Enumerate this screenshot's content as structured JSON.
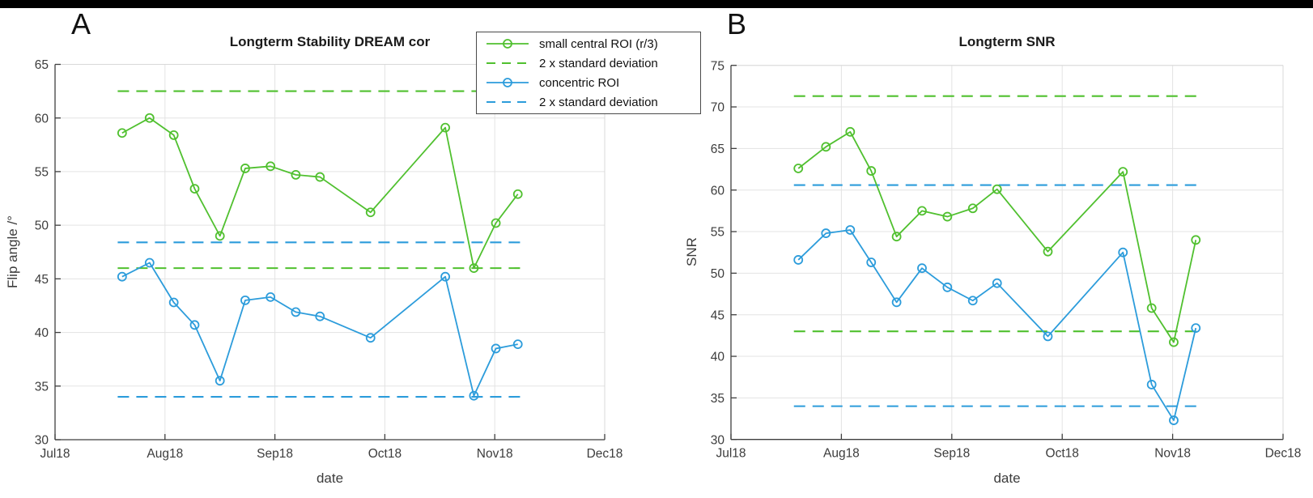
{
  "panel_labels": {
    "a": "A",
    "b": "B"
  },
  "colors": {
    "green": "#50C02F",
    "blue": "#2C9CDB",
    "grid": "#E3E3E3",
    "box_light": "#D9D9D9",
    "axis": "#3F3F3F",
    "tick_text": "#3C3C3C"
  },
  "legend": {
    "items": [
      {
        "label": "small central ROI (r/3)",
        "style": "solid-marker",
        "color_key": "green"
      },
      {
        "label": "2 x standard deviation",
        "style": "dashed",
        "color_key": "green"
      },
      {
        "label": "concentric ROI",
        "style": "solid-marker",
        "color_key": "blue"
      },
      {
        "label": "2 x standard deviation",
        "style": "dashed",
        "color_key": "blue"
      }
    ]
  },
  "chart_data": [
    {
      "type": "line",
      "title": "Longterm Stability DREAM cor",
      "xlabel": "date",
      "ylabel": "Flip angle /°",
      "x_unit": "months after Jul18 tick (0 = Jul18, 1 = Aug18, ...)",
      "xlim": [
        0,
        5
      ],
      "ylim": [
        30,
        65
      ],
      "yticks": [
        30,
        35,
        40,
        45,
        50,
        55,
        60,
        65
      ],
      "xtick_labels": [
        "Jul18",
        "Aug18",
        "Sep18",
        "Oct18",
        "Nov18",
        "Dec18"
      ],
      "grid": true,
      "hline_span": [
        0.57,
        4.24
      ],
      "x": [
        0.61,
        0.86,
        1.08,
        1.27,
        1.5,
        1.73,
        1.96,
        2.19,
        2.41,
        2.87,
        3.55,
        3.81,
        4.01,
        4.21
      ],
      "series": [
        {
          "name": "small central ROI (r/3)",
          "color_key": "green",
          "style": "solid",
          "marker": "circle",
          "values": [
            58.6,
            60.0,
            58.4,
            53.4,
            49.0,
            55.3,
            55.5,
            54.7,
            54.5,
            51.2,
            59.1,
            46.0,
            50.2,
            52.9
          ]
        },
        {
          "name": "2 x standard deviation",
          "color_key": "green",
          "style": "dashed",
          "hlines": [
            62.5,
            46.0
          ]
        },
        {
          "name": "concentric ROI",
          "color_key": "blue",
          "style": "solid",
          "marker": "circle",
          "values": [
            45.2,
            46.5,
            42.8,
            40.7,
            35.5,
            43.0,
            43.3,
            41.9,
            41.5,
            39.5,
            45.2,
            34.1,
            38.5,
            38.9
          ]
        },
        {
          "name": "2 x standard deviation",
          "color_key": "blue",
          "style": "dashed",
          "hlines": [
            48.4,
            34.0
          ]
        }
      ]
    },
    {
      "type": "line",
      "title": "Longterm SNR",
      "xlabel": "date",
      "ylabel": "SNR",
      "x_unit": "months after Jul18 tick (0 = Jul18, 1 = Aug18, ...)",
      "xlim": [
        0,
        5
      ],
      "ylim": [
        30,
        75
      ],
      "yticks": [
        30,
        35,
        40,
        45,
        50,
        55,
        60,
        65,
        70,
        75
      ],
      "xtick_labels": [
        "Jul18",
        "Aug18",
        "Sep18",
        "Oct18",
        "Nov18",
        "Dec18"
      ],
      "grid": true,
      "hline_span": [
        0.57,
        4.24
      ],
      "x": [
        0.61,
        0.86,
        1.08,
        1.27,
        1.5,
        1.73,
        1.96,
        2.19,
        2.41,
        2.87,
        3.55,
        3.81,
        4.01,
        4.21
      ],
      "series": [
        {
          "name": "small central ROI (r/3)",
          "color_key": "green",
          "style": "solid",
          "marker": "circle",
          "values": [
            62.6,
            65.2,
            67.0,
            62.3,
            54.4,
            57.5,
            56.8,
            57.8,
            60.1,
            52.6,
            62.2,
            45.8,
            41.7,
            54.0
          ]
        },
        {
          "name": "2 x standard deviation",
          "color_key": "green",
          "style": "dashed",
          "hlines": [
            71.3,
            43.0
          ]
        },
        {
          "name": "concentric ROI",
          "color_key": "blue",
          "style": "solid",
          "marker": "circle",
          "values": [
            51.6,
            54.8,
            55.2,
            51.3,
            46.5,
            50.6,
            48.3,
            46.7,
            48.8,
            42.4,
            52.5,
            36.6,
            32.3,
            43.4
          ]
        },
        {
          "name": "2 x standard deviation",
          "color_key": "blue",
          "style": "dashed",
          "hlines": [
            60.6,
            34.0
          ]
        }
      ]
    }
  ]
}
